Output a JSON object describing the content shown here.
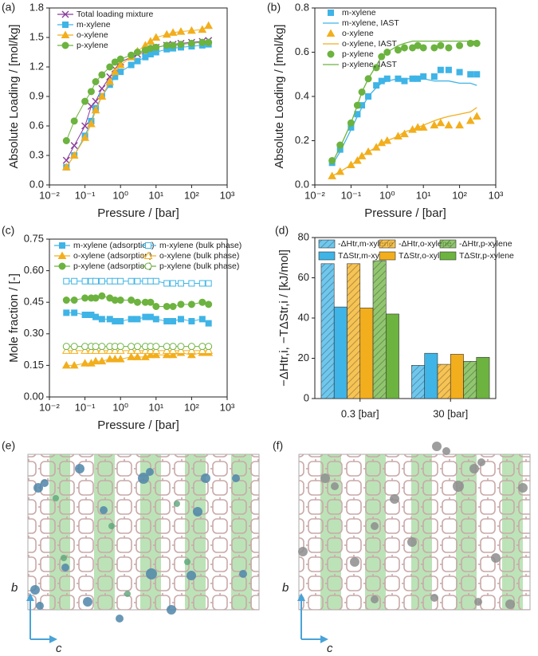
{
  "chart_data": [
    {
      "type": "line",
      "panel_label": "(a)",
      "x_label": "Pressure / [bar]",
      "y_label": "Absolute Loading / [mol/kg]",
      "log_x": true,
      "x": [
        0.03,
        0.05,
        0.1,
        0.15,
        0.2,
        0.3,
        0.5,
        0.7,
        1,
        2,
        3,
        5,
        7,
        10,
        20,
        30,
        50,
        100,
        200,
        300
      ],
      "xlim": [
        0.01,
        1000
      ],
      "xticks": [
        {
          "value": 0.01,
          "label": "10⁻²"
        },
        {
          "value": 0.1,
          "label": "10⁻¹"
        },
        {
          "value": 1,
          "label": "10⁰"
        },
        {
          "value": 10,
          "label": "10¹"
        },
        {
          "value": 100,
          "label": "10²"
        },
        {
          "value": 1000,
          "label": "10³"
        }
      ],
      "ylim": [
        0,
        1.8
      ],
      "yticks": [
        {
          "value": 0,
          "label": "0.0"
        },
        0.3,
        0.6,
        0.9,
        1.2,
        1.5,
        1.8
      ],
      "legend": "upper left",
      "series": [
        {
          "name": "Total loading mixture",
          "color": "#8b3c9e",
          "marker": "x",
          "filled": false,
          "show_line": true,
          "show_markers": true,
          "values": [
            0.25,
            0.4,
            0.6,
            0.8,
            0.85,
            0.98,
            1.1,
            1.18,
            1.25,
            1.3,
            1.33,
            1.36,
            1.38,
            1.4,
            1.42,
            1.43,
            1.44,
            1.45,
            1.46,
            1.47
          ]
        },
        {
          "name": "m-xylene",
          "color": "#3fb4e6",
          "marker": "square",
          "filled": true,
          "show_line": true,
          "show_markers": true,
          "values": [
            0.18,
            0.3,
            0.5,
            0.65,
            0.78,
            0.9,
            1.02,
            1.1,
            1.15,
            1.22,
            1.26,
            1.3,
            1.33,
            1.35,
            1.38,
            1.39,
            1.4,
            1.41,
            1.42,
            1.43
          ]
        },
        {
          "name": "o-xylene",
          "color": "#f2ae1c",
          "marker": "triangle",
          "filled": true,
          "show_line": true,
          "show_markers": true,
          "values": [
            0.18,
            0.3,
            0.48,
            0.62,
            0.76,
            0.9,
            1.05,
            1.15,
            1.22,
            1.3,
            1.36,
            1.42,
            1.46,
            1.5,
            1.53,
            1.55,
            1.56,
            1.57,
            1.58,
            1.62
          ]
        },
        {
          "name": "p-xylene",
          "color": "#6cb33f",
          "marker": "circle",
          "filled": true,
          "show_line": true,
          "show_markers": true,
          "values": [
            0.45,
            0.65,
            0.85,
            0.95,
            1.05,
            1.12,
            1.2,
            1.25,
            1.28,
            1.32,
            1.35,
            1.37,
            1.39,
            1.4,
            1.42,
            1.42,
            1.43,
            1.44,
            1.45,
            1.45
          ]
        }
      ]
    },
    {
      "type": "line",
      "panel_label": "(b)",
      "x_label": "Pressure / [bar]",
      "y_label": "Absolute Loading / [mol/kg]",
      "log_x": true,
      "x": [
        0.03,
        0.05,
        0.1,
        0.15,
        0.2,
        0.3,
        0.5,
        0.7,
        1,
        2,
        3,
        5,
        7,
        10,
        20,
        30,
        50,
        100,
        200,
        300
      ],
      "xlim": [
        0.01,
        1000
      ],
      "xticks": [
        {
          "value": 0.01,
          "label": "10⁻²"
        },
        {
          "value": 0.1,
          "label": "10⁻¹"
        },
        {
          "value": 1,
          "label": "10⁰"
        },
        {
          "value": 10,
          "label": "10¹"
        },
        {
          "value": 100,
          "label": "10²"
        },
        {
          "value": 1000,
          "label": "10³"
        }
      ],
      "ylim": [
        0,
        0.8
      ],
      "yticks": [
        {
          "value": 0,
          "label": "0.0"
        },
        0.2,
        0.4,
        0.6,
        0.8
      ],
      "legend": "upper left",
      "series": [
        {
          "name": "m-xylene",
          "color": "#3fb4e6",
          "marker": "square",
          "filled": true,
          "show_line": false,
          "show_markers": true,
          "values": [
            0.1,
            0.16,
            0.26,
            0.32,
            0.36,
            0.4,
            0.45,
            0.47,
            0.48,
            0.48,
            0.47,
            0.48,
            0.48,
            0.49,
            0.49,
            0.52,
            0.52,
            0.51,
            0.5,
            0.5
          ]
        },
        {
          "name": "m-xylene, IAST",
          "color": "#3fb4e6",
          "marker": "none",
          "filled": false,
          "show_line": true,
          "show_markers": false,
          "values": [
            0.09,
            0.15,
            0.25,
            0.31,
            0.35,
            0.4,
            0.44,
            0.46,
            0.47,
            0.48,
            0.48,
            0.48,
            0.48,
            0.48,
            0.47,
            0.47,
            0.47,
            0.46,
            0.46,
            0.45
          ]
        },
        {
          "name": "o-xylene",
          "color": "#f2ae1c",
          "marker": "triangle",
          "filled": true,
          "show_line": false,
          "show_markers": true,
          "values": [
            0.04,
            0.06,
            0.09,
            0.11,
            0.13,
            0.15,
            0.17,
            0.19,
            0.2,
            0.22,
            0.23,
            0.25,
            0.26,
            0.26,
            0.27,
            0.28,
            0.27,
            0.27,
            0.29,
            0.31
          ]
        },
        {
          "name": "o-xylene, IAST",
          "color": "#f2ae1c",
          "marker": "none",
          "filled": false,
          "show_line": true,
          "show_markers": false,
          "values": [
            0.04,
            0.06,
            0.09,
            0.11,
            0.13,
            0.15,
            0.17,
            0.19,
            0.2,
            0.22,
            0.24,
            0.25,
            0.26,
            0.27,
            0.29,
            0.3,
            0.31,
            0.32,
            0.33,
            0.35
          ]
        },
        {
          "name": "p-xylene",
          "color": "#6cb33f",
          "marker": "circle",
          "filled": true,
          "show_line": false,
          "show_markers": true,
          "values": [
            0.11,
            0.18,
            0.28,
            0.36,
            0.42,
            0.48,
            0.53,
            0.58,
            0.6,
            0.61,
            0.62,
            0.62,
            0.63,
            0.62,
            0.62,
            0.63,
            0.62,
            0.63,
            0.64,
            0.64
          ]
        },
        {
          "name": "p-xylene, IAST",
          "color": "#6cb33f",
          "marker": "none",
          "filled": false,
          "show_line": true,
          "show_markers": false,
          "values": [
            0.1,
            0.17,
            0.28,
            0.36,
            0.42,
            0.48,
            0.54,
            0.58,
            0.6,
            0.63,
            0.64,
            0.65,
            0.65,
            0.65,
            0.65,
            0.65,
            0.65,
            0.65,
            0.65,
            0.65
          ]
        }
      ]
    },
    {
      "type": "line",
      "panel_label": "(c)",
      "x_label": "Pressure / [bar]",
      "y_label": "Mole fraction / [-]",
      "log_x": true,
      "x": [
        0.03,
        0.05,
        0.1,
        0.15,
        0.2,
        0.3,
        0.5,
        0.7,
        1,
        2,
        3,
        5,
        7,
        10,
        20,
        30,
        50,
        100,
        200,
        300
      ],
      "xlim": [
        0.01,
        1000
      ],
      "xticks": [
        {
          "value": 0.01,
          "label": "10⁻²"
        },
        {
          "value": 0.1,
          "label": "10⁻¹"
        },
        {
          "value": 1,
          "label": "10⁰"
        },
        {
          "value": 10,
          "label": "10¹"
        },
        {
          "value": 100,
          "label": "10²"
        },
        {
          "value": 1000,
          "label": "10³"
        }
      ],
      "ylim": [
        0,
        0.75
      ],
      "yticks": [
        {
          "value": 0,
          "label": "0.00"
        },
        0.15,
        {
          "value": 0.3,
          "label": "0.30"
        },
        0.45,
        {
          "value": 0.6,
          "label": "0.60"
        },
        0.75
      ],
      "legend": "upper left",
      "series": [
        {
          "name": "m-xylene (adsorption)",
          "color": "#3fb4e6",
          "marker": "square",
          "filled": true,
          "show_line": true,
          "show_markers": true,
          "values": [
            0.4,
            0.4,
            0.39,
            0.39,
            0.38,
            0.37,
            0.37,
            0.36,
            0.36,
            0.37,
            0.37,
            0.38,
            0.38,
            0.37,
            0.36,
            0.36,
            0.37,
            0.36,
            0.37,
            0.35
          ]
        },
        {
          "name": "m-xylene (bulk phase)",
          "color": "#3fb4e6",
          "marker": "square",
          "filled": false,
          "show_line": true,
          "show_markers": true,
          "values": [
            0.55,
            0.55,
            0.55,
            0.55,
            0.55,
            0.55,
            0.55,
            0.55,
            0.55,
            0.55,
            0.55,
            0.55,
            0.55,
            0.55,
            0.54,
            0.54,
            0.54,
            0.54,
            0.54,
            0.54
          ]
        },
        {
          "name": "o-xylene (adsorption)",
          "color": "#f2ae1c",
          "marker": "triangle",
          "filled": true,
          "show_line": true,
          "show_markers": true,
          "values": [
            0.15,
            0.15,
            0.16,
            0.16,
            0.17,
            0.17,
            0.18,
            0.18,
            0.18,
            0.19,
            0.19,
            0.19,
            0.2,
            0.2,
            0.2,
            0.2,
            0.21,
            0.2,
            0.21,
            0.21
          ]
        },
        {
          "name": "o-xylene (bulk phase)",
          "color": "#f2ae1c",
          "marker": "triangle",
          "filled": false,
          "show_line": true,
          "show_markers": true,
          "values": [
            0.22,
            0.22,
            0.22,
            0.22,
            0.22,
            0.22,
            0.22,
            0.22,
            0.22,
            0.22,
            0.22,
            0.22,
            0.22,
            0.22,
            0.22,
            0.22,
            0.22,
            0.22,
            0.22,
            0.22
          ]
        },
        {
          "name": "p-xylene (adsorption)",
          "color": "#6cb33f",
          "marker": "circle",
          "filled": true,
          "show_line": true,
          "show_markers": true,
          "values": [
            0.46,
            0.46,
            0.47,
            0.47,
            0.47,
            0.48,
            0.47,
            0.46,
            0.46,
            0.46,
            0.45,
            0.45,
            0.45,
            0.43,
            0.43,
            0.43,
            0.44,
            0.44,
            0.45,
            0.44
          ]
        },
        {
          "name": "p-xylene (bulk phase)",
          "color": "#6cb33f",
          "marker": "circle",
          "filled": false,
          "show_line": true,
          "show_markers": true,
          "values": [
            0.24,
            0.24,
            0.24,
            0.24,
            0.24,
            0.24,
            0.24,
            0.24,
            0.24,
            0.24,
            0.24,
            0.24,
            0.24,
            0.24,
            0.24,
            0.24,
            0.24,
            0.24,
            0.24,
            0.24
          ]
        }
      ]
    },
    {
      "type": "bar",
      "panel_label": "(d)",
      "y_label": "−ΔHtr,i, −TΔStr,i / [kJ/mol]",
      "categories": [
        "0.3 [bar]",
        "30 [bar]"
      ],
      "ylim": [
        0,
        80
      ],
      "yticks": [
        0,
        20,
        40,
        60,
        80
      ],
      "legend": "upper center",
      "series": [
        {
          "name": "-ΔHtr,m-xylene",
          "color": "#3fb4e6",
          "hatch": true,
          "values": [
            67,
            16.5
          ]
        },
        {
          "name": "TΔStr,m-xylene",
          "color": "#3fb4e6",
          "hatch": false,
          "values": [
            45.5,
            22.5
          ]
        },
        {
          "name": "-ΔHtr,o-xylene",
          "color": "#f2ae1c",
          "hatch": true,
          "values": [
            67,
            17
          ]
        },
        {
          "name": "TΔStr,o-xylene",
          "color": "#f2ae1c",
          "hatch": false,
          "values": [
            45,
            22
          ]
        },
        {
          "name": "-ΔHtr,p-xylene",
          "color": "#6cb33f",
          "hatch": true,
          "values": [
            68.5,
            18.5
          ]
        },
        {
          "name": "TΔStr,p-xylene",
          "color": "#6cb33f",
          "hatch": false,
          "values": [
            42,
            20.5
          ]
        }
      ]
    }
  ],
  "images": [
    {
      "panel_label": "(e)",
      "axis_vertical": "b",
      "axis_horizontal": "c"
    },
    {
      "panel_label": "(f)",
      "axis_vertical": "b",
      "axis_horizontal": "c"
    }
  ]
}
